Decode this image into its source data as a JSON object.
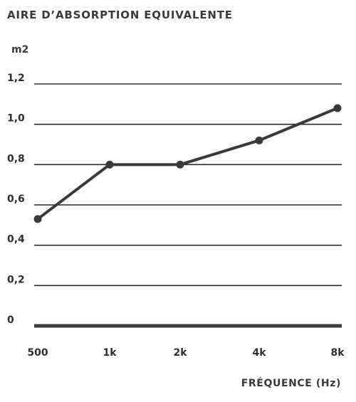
{
  "chart_data": {
    "type": "line",
    "title": "AIRE D’ABSORPTION EQUIVALENTE",
    "ylabel": "m2",
    "xlabel": "FRÉQUENCE (Hz)",
    "categories": [
      "500",
      "1k",
      "2k",
      "4k",
      "8k"
    ],
    "values": [
      0.53,
      0.8,
      0.8,
      0.92,
      1.08
    ],
    "y_ticks": [
      "0",
      "0,2",
      "0,4",
      "0,6",
      "0,8",
      "1,0",
      "1,2"
    ],
    "ylim": [
      0,
      1.2
    ],
    "grid": true,
    "legend": "none",
    "colors": {
      "line": "#3a3a3a",
      "grid": "#2a2a2a",
      "baseline": "#3a3a3a",
      "text": "#3a3a3a"
    }
  }
}
